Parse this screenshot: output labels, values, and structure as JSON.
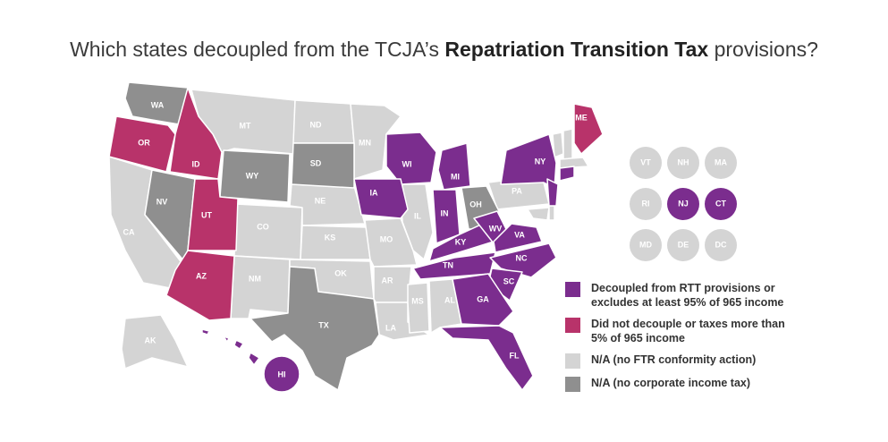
{
  "title": {
    "prefix": "Which states decoupled from the TCJA’s ",
    "bold": "Repatriation Transition Tax",
    "suffix": " provisions?"
  },
  "colors": {
    "decoupled": "#7b2d8e",
    "not_decoupled": "#b8336a",
    "no_action": "#d4d4d4",
    "no_tax": "#8f8f8f"
  },
  "states": {
    "WA": "WA",
    "OR": "OR",
    "CA": "CA",
    "NV": "NV",
    "ID": "ID",
    "MT": "MT",
    "WY": "WY",
    "UT": "UT",
    "AZ": "AZ",
    "CO": "CO",
    "NM": "NM",
    "ND": "ND",
    "SD": "SD",
    "NE": "NE",
    "KS": "KS",
    "OK": "OK",
    "TX": "TX",
    "MN": "MN",
    "IA": "IA",
    "MO": "MO",
    "AR": "AR",
    "LA": "LA",
    "WI": "WI",
    "IL": "IL",
    "MS": "MS",
    "MI": "MI",
    "IN": "IN",
    "KY": "KY",
    "TN": "TN",
    "AL": "AL",
    "OH": "OH",
    "GA": "GA",
    "FL": "FL",
    "SC": "SC",
    "NC": "NC",
    "VA": "VA",
    "WV": "WV",
    "PA": "PA",
    "NY": "NY",
    "ME": "ME",
    "AK": "AK",
    "HI": "HI"
  },
  "small_states": [
    "VT",
    "NH",
    "MA",
    "RI",
    "NJ",
    "CT",
    "MD",
    "DE",
    "DC"
  ],
  "legend": [
    {
      "label": "Decoupled from RTT provisions or excludes at least 95% of 965 income"
    },
    {
      "label": "Did not decouple or taxes more than 5% of 965 income"
    },
    {
      "label": "N/A (no FTR conformity action)"
    },
    {
      "label": "N/A (no corporate income tax)"
    }
  ]
}
